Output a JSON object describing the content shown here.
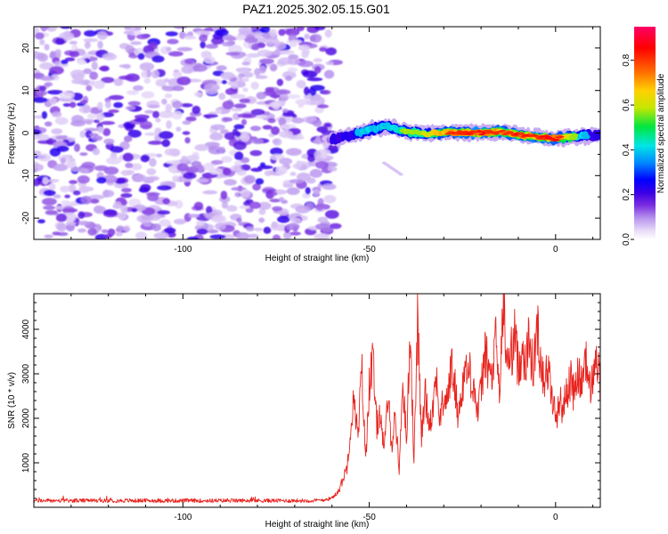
{
  "title": "PAZ1.2025.302.05.15.G01",
  "colors": {
    "snr_line": "#e8231e",
    "colormap": [
      "#ffffff",
      "#e9dcf9",
      "#b894ee",
      "#7a2ee0",
      "#3a00e6",
      "#0000ff",
      "#0088ff",
      "#00e5e5",
      "#00e640",
      "#c8e600",
      "#ffd000",
      "#ff6a00",
      "#ff0000",
      "#ff0066"
    ]
  },
  "chart_data": [
    {
      "type": "heatmap",
      "name": "spectrogram",
      "xlabel": "Height of straight line (km)",
      "ylabel": "Frequency (Hz)",
      "xlim": [
        -140,
        12
      ],
      "ylim": [
        -25,
        25
      ],
      "xticks": [
        -100,
        -50,
        0
      ],
      "xtick_labels": [
        "-100",
        "-50",
        "0"
      ],
      "yticks": [
        -20,
        -10,
        0,
        10,
        20
      ],
      "ytick_labels": [
        "-20",
        "-10",
        "0",
        "10",
        "20"
      ],
      "noise_region_x": [
        -140,
        -59
      ],
      "signal_ridge": {
        "x": [
          -60,
          -55,
          -50,
          -45,
          -40,
          -35,
          -30,
          -25,
          -20,
          -15,
          -10,
          -5,
          0,
          5,
          10
        ],
        "freq": [
          -1.5,
          -0.5,
          0.8,
          1.6,
          0.4,
          -0.2,
          0.2,
          0.1,
          0.0,
          0.3,
          -0.4,
          -0.9,
          -1.3,
          -0.8,
          -0.6
        ],
        "amplitude": [
          0.25,
          0.35,
          0.45,
          0.5,
          0.6,
          0.65,
          0.8,
          0.85,
          0.9,
          0.8,
          0.9,
          0.85,
          0.95,
          0.6,
          0.3
        ]
      },
      "colorbar": {
        "label": "Normalized spectral amplitude",
        "range": [
          0.0,
          0.95
        ],
        "ticks": [
          0.0,
          0.2,
          0.4,
          0.6,
          0.8
        ],
        "tick_labels": [
          "0.0",
          "0.2",
          "0.4",
          "0.6",
          "0.8"
        ]
      }
    },
    {
      "type": "line",
      "name": "snr",
      "xlabel": "Height of straight line (km)",
      "ylabel": "SNR (10 * v/v)",
      "xlim": [
        -140,
        12
      ],
      "ylim": [
        0,
        4800
      ],
      "xticks": [
        -100,
        -50,
        0
      ],
      "xtick_labels": [
        "-100",
        "-50",
        "0"
      ],
      "yticks": [
        1000,
        2000,
        3000,
        4000
      ],
      "ytick_labels": [
        "1000",
        "2000",
        "3000",
        "4000"
      ],
      "series": [
        {
          "name": "SNR",
          "x": [
            -140,
            -130,
            -120,
            -110,
            -100,
            -90,
            -80,
            -70,
            -64,
            -60,
            -58,
            -56,
            -55,
            -54,
            -53,
            -52,
            -51,
            -50,
            -49,
            -48,
            -47,
            -46,
            -45,
            -44,
            -43,
            -42,
            -41,
            -40,
            -39,
            -38,
            -37,
            -36,
            -35,
            -34,
            -33,
            -32,
            -31,
            -30,
            -29,
            -28,
            -27,
            -26,
            -25,
            -24,
            -23,
            -22,
            -21,
            -20,
            -19,
            -18,
            -17,
            -16,
            -15,
            -14,
            -13,
            -12,
            -11,
            -10,
            -9,
            -8,
            -7,
            -6,
            -5,
            -4,
            -3,
            -2,
            -1,
            0,
            1,
            2,
            3,
            4,
            5,
            6,
            7,
            8,
            9,
            10,
            11,
            12
          ],
          "y": [
            150,
            150,
            150,
            150,
            150,
            150,
            150,
            150,
            150,
            200,
            400,
            900,
            1800,
            2500,
            1500,
            3200,
            1000,
            2800,
            3300,
            1800,
            2200,
            1200,
            2500,
            1400,
            2100,
            800,
            2800,
            1500,
            4100,
            1000,
            4300,
            1500,
            2600,
            1900,
            2200,
            3000,
            1900,
            2500,
            2400,
            3200,
            2700,
            2000,
            2800,
            3100,
            3000,
            2800,
            2100,
            2600,
            3500,
            3100,
            2900,
            3800,
            2500,
            4700,
            3200,
            3400,
            3900,
            3100,
            3600,
            3300,
            3800,
            3000,
            4100,
            3300,
            2900,
            3100,
            2500,
            2000,
            2400,
            2200,
            2600,
            2900,
            2500,
            3000,
            2700,
            3500,
            2600,
            2900,
            3400,
            2700
          ]
        }
      ]
    }
  ]
}
